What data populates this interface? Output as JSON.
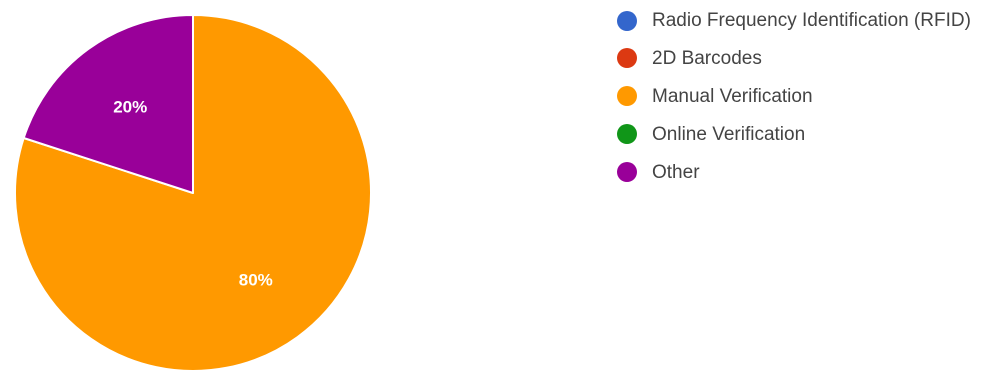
{
  "chart_data": {
    "type": "pie",
    "title": "",
    "series": [
      {
        "name": "Radio Frequency Identification (RFID)",
        "value": 0,
        "color": "#3366cc"
      },
      {
        "name": "2D Barcodes",
        "value": 0,
        "color": "#dc3912"
      },
      {
        "name": "Manual Verification",
        "value": 80,
        "color": "#ff9900"
      },
      {
        "name": "Online Verification",
        "value": 0,
        "color": "#109618"
      },
      {
        "name": "Other",
        "value": 20,
        "color": "#990099"
      }
    ],
    "data_labels": [
      "",
      "",
      "80%",
      "",
      "20%"
    ],
    "legend": {
      "placement": "right"
    }
  }
}
